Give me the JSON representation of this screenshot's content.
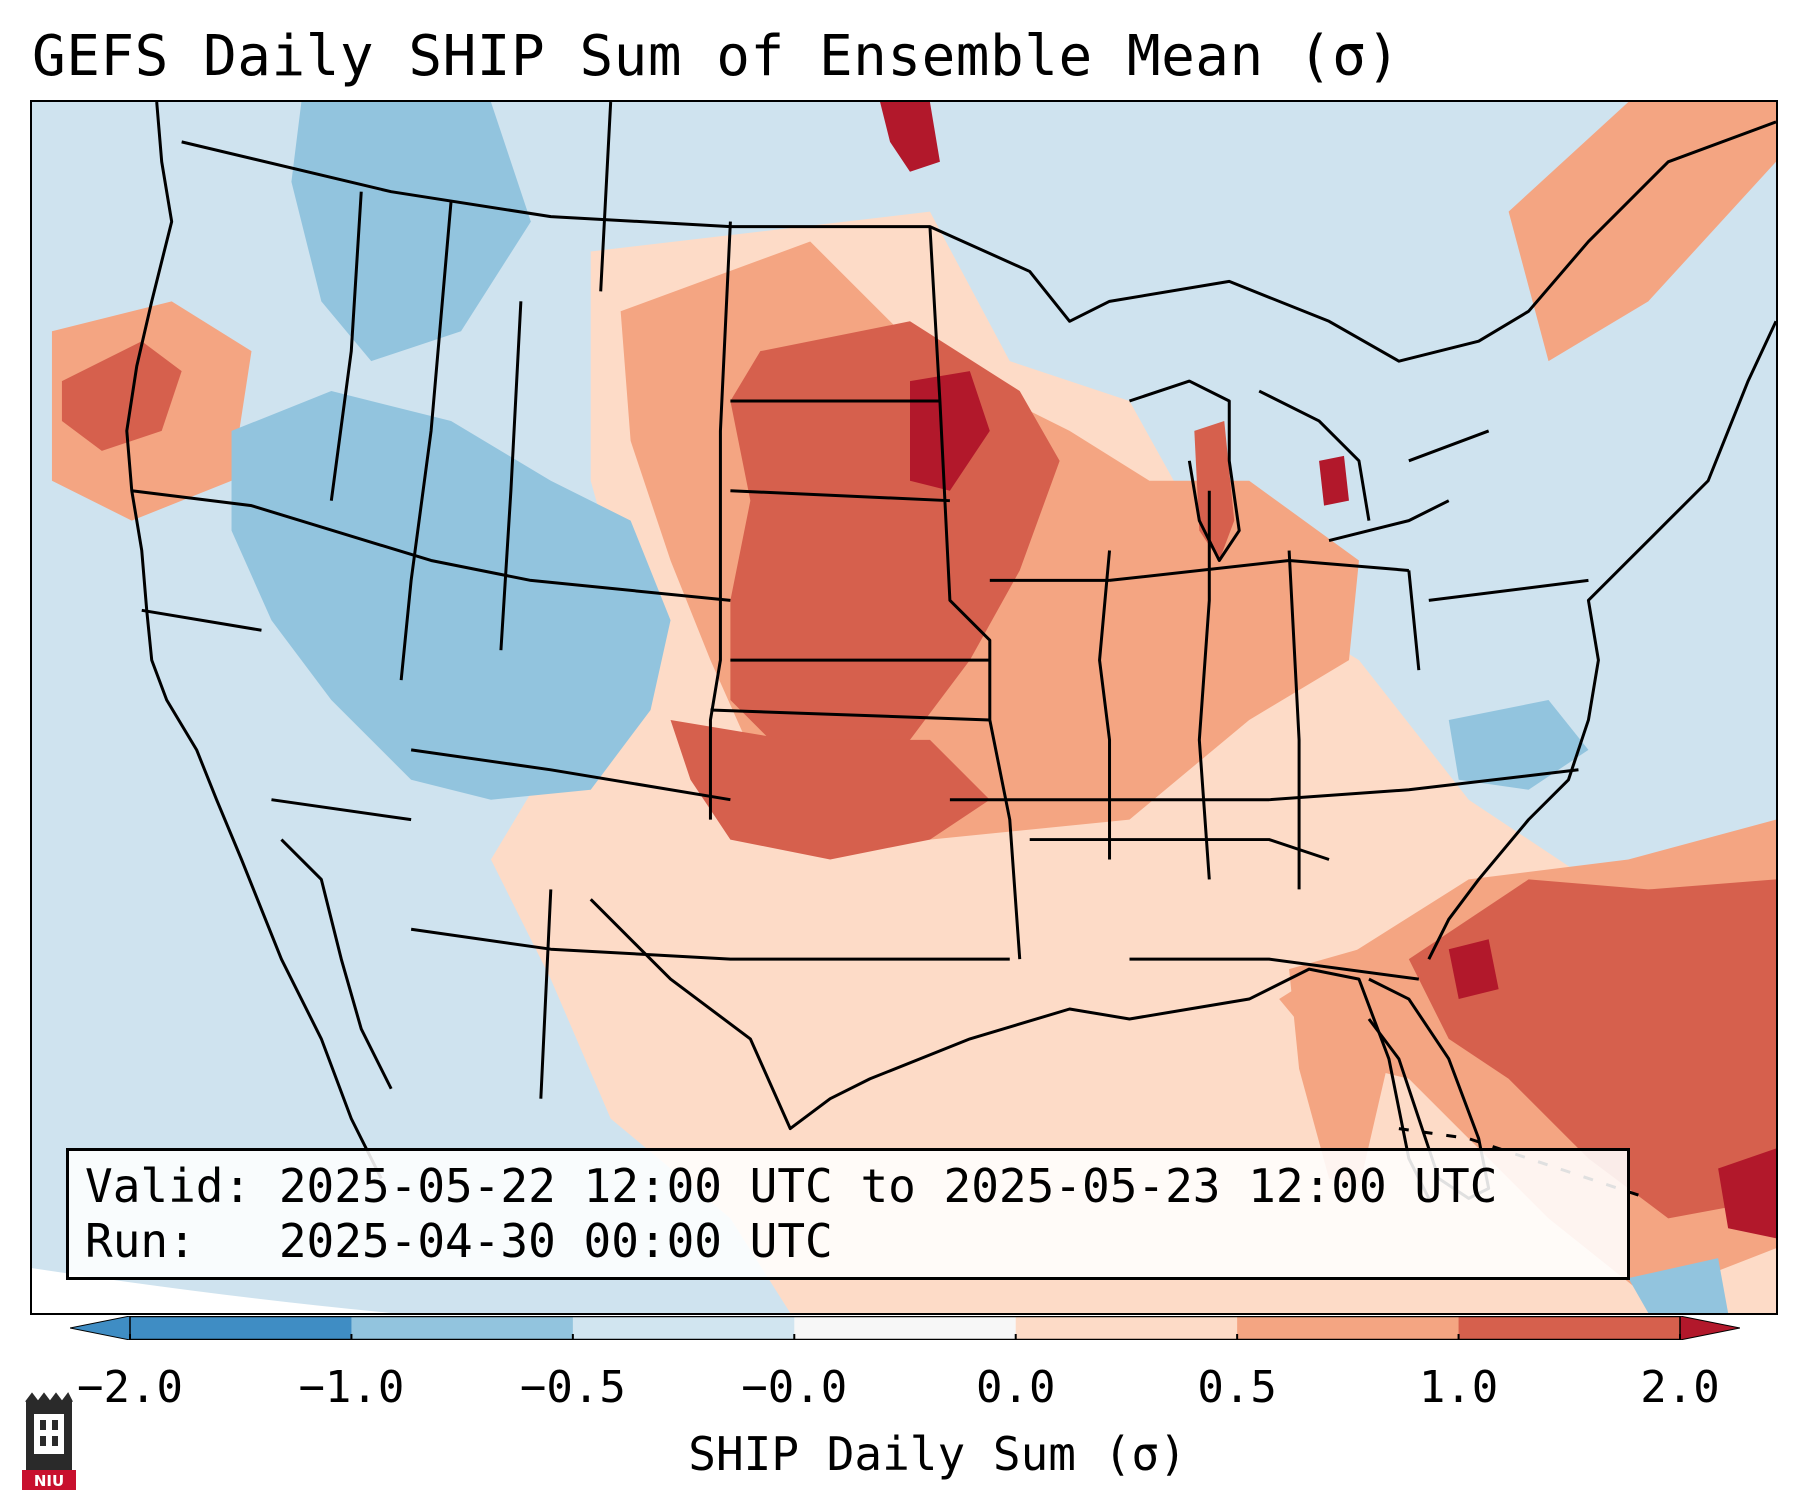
{
  "title": "GEFS Daily SHIP Sum of Ensemble Mean (σ)",
  "info": {
    "valid_line": "Valid: 2025-05-22 12:00 UTC to 2025-05-23 12:00 UTC",
    "run_line": "Run:   2025-04-30 00:00 UTC"
  },
  "colorbar": {
    "label": "SHIP Daily Sum (σ)",
    "ticks": [
      "−2.0",
      "−1.0",
      "−0.5",
      "−0.0",
      "0.0",
      "0.5",
      "1.0",
      "2.0"
    ],
    "colors": [
      "#3f8dc4",
      "#92c4de",
      "#d1e5f0",
      "#f7f7f7",
      "#fddbc7",
      "#f4a582",
      "#d6604d",
      "#b2182b"
    ],
    "extend": "both"
  },
  "logo": {
    "text": "NIU",
    "color": "#c8102e",
    "icon": "niu-logo-icon"
  },
  "map": {
    "projection": "lambert-conformal-conus",
    "background_level": "−0.5 to −0.0",
    "regions": [
      {
        "name": "pacific-northwest-coast",
        "level": "1.0 to 2.0"
      },
      {
        "name": "great-basin-interior-west",
        "level": "−1.0 to −0.5"
      },
      {
        "name": "northern-and-central-plains",
        "level": "1.0 to 2.0"
      },
      {
        "name": "midwest-mississippi-valley",
        "level": "0.5 to 1.0"
      },
      {
        "name": "southern-plains-texas",
        "level": "0.0 to 0.5"
      },
      {
        "name": "gulf-of-mexico",
        "level": "0.0 to 0.5"
      },
      {
        "name": "western-atlantic-offshore",
        "level": "1.0 to 2.0"
      },
      {
        "name": "carolinas",
        "level": "−1.0 to −0.5"
      }
    ]
  }
}
